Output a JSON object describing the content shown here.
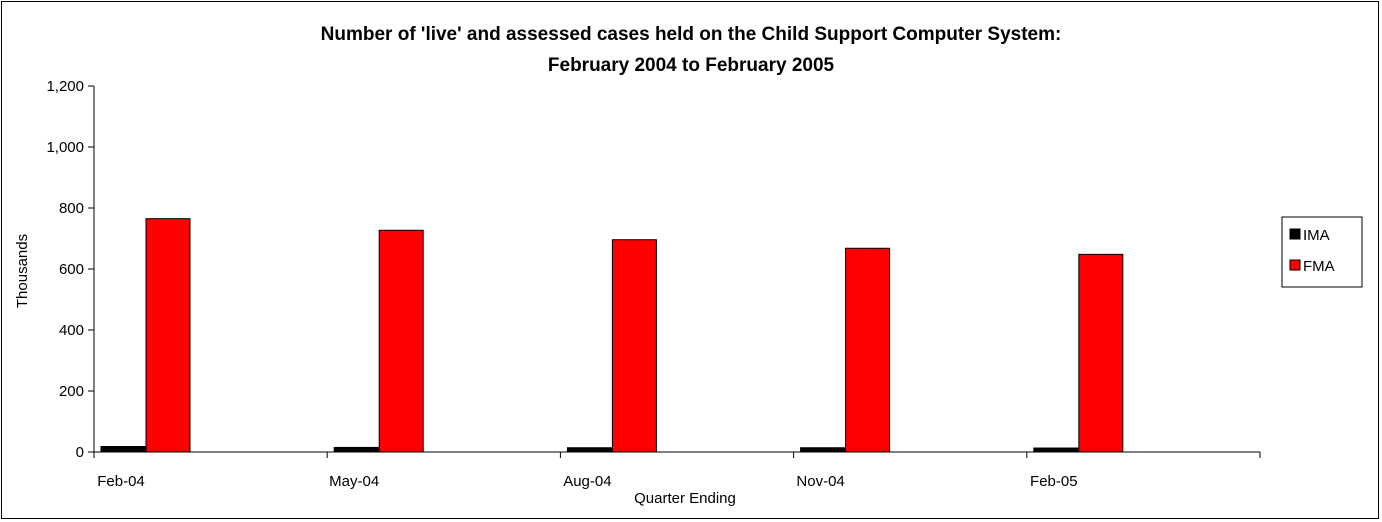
{
  "chart_data": {
    "type": "bar",
    "title": "Number of 'live' and assessed cases held on the Child Support Computer System:",
    "subtitle": "February 2004 to February 2005",
    "xlabel": "Quarter Ending",
    "ylabel": "Thousands",
    "categories": [
      "Feb-04",
      "May-04",
      "Aug-04",
      "Nov-04",
      "Feb-05"
    ],
    "series": [
      {
        "name": "IMA",
        "color": "#000000",
        "values": [
          18,
          15,
          14,
          14,
          13
        ]
      },
      {
        "name": "FMA",
        "color": "#ff0000",
        "values": [
          765,
          727,
          696,
          668,
          648
        ]
      }
    ],
    "ylim": [
      0,
      1200
    ],
    "yticks": [
      "0",
      "200",
      "400",
      "600",
      "800",
      "1,000",
      "1,200"
    ],
    "ytick_values": [
      0,
      200,
      400,
      600,
      800,
      1000,
      1200
    ],
    "grid": false,
    "legend_position": "right"
  }
}
